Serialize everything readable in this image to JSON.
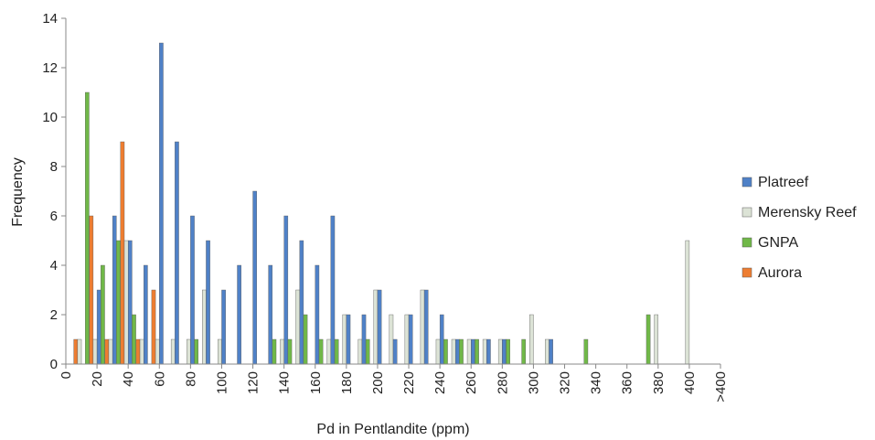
{
  "chart_data": {
    "type": "bar",
    "xlabel": "Pd in Pentlandite (ppm)",
    "ylabel": "Frequency",
    "ylim": [
      0,
      14
    ],
    "y_ticks": [
      0,
      2,
      4,
      6,
      8,
      10,
      12,
      14
    ],
    "x_ticks": [
      "0",
      "20",
      "40",
      "60",
      "80",
      "100",
      "120",
      "140",
      "160",
      "180",
      "200",
      "220",
      "240",
      "260",
      "280",
      "300",
      "320",
      "340",
      "360",
      "380",
      "400",
      ">400"
    ],
    "grid": false,
    "legend_position": "right",
    "categories": [
      "10",
      "20",
      "30",
      "40",
      "50",
      "60",
      "70",
      "80",
      "90",
      "100",
      "110",
      "120",
      "130",
      "140",
      "150",
      "160",
      "170",
      "180",
      "190",
      "200",
      "210",
      "220",
      "230",
      "240",
      "250",
      "260",
      "270",
      "280",
      "290",
      "300",
      "310",
      "320",
      "330",
      "340",
      "350",
      "360",
      "370",
      "380",
      "390",
      "400",
      "410"
    ],
    "series": [
      {
        "name": "Aurora",
        "color": "#ed7d31",
        "values": [
          1,
          6,
          1,
          9,
          1,
          3,
          0,
          0,
          0,
          0,
          0,
          0,
          0,
          0,
          0,
          0,
          0,
          0,
          0,
          0,
          0,
          0,
          0,
          0,
          0,
          0,
          0,
          0,
          0,
          0,
          0,
          0,
          0,
          0,
          0,
          0,
          0,
          0,
          0,
          0,
          0
        ]
      },
      {
        "name": "Merensky Reef",
        "color": "#dce3d6",
        "values": [
          1,
          1,
          1,
          5,
          1,
          1,
          1,
          1,
          3,
          1,
          0,
          0,
          0,
          1,
          3,
          0,
          1,
          2,
          1,
          3,
          2,
          2,
          3,
          1,
          1,
          1,
          1,
          1,
          0,
          2,
          1,
          0,
          0,
          0,
          0,
          0,
          0,
          2,
          0,
          5,
          0
        ]
      },
      {
        "name": "Platreef",
        "color": "#4f81c7",
        "values": [
          0,
          3,
          6,
          5,
          4,
          13,
          9,
          6,
          5,
          3,
          4,
          7,
          4,
          6,
          5,
          4,
          6,
          2,
          2,
          3,
          1,
          2,
          3,
          2,
          1,
          1,
          1,
          1,
          0,
          0,
          1,
          0,
          0,
          0,
          0,
          0,
          0,
          0,
          0,
          0,
          0
        ]
      },
      {
        "name": "GNPA",
        "color": "#70b848",
        "values": [
          11,
          4,
          5,
          2,
          0,
          0,
          0,
          1,
          0,
          0,
          0,
          0,
          1,
          1,
          2,
          1,
          1,
          0,
          1,
          0,
          0,
          0,
          0,
          1,
          1,
          1,
          0,
          1,
          1,
          0,
          0,
          0,
          1,
          0,
          0,
          0,
          2,
          0,
          0,
          0,
          0
        ]
      }
    ],
    "legend_order": [
      "Platreef",
      "Merensky Reef",
      "GNPA",
      "Aurora"
    ]
  }
}
